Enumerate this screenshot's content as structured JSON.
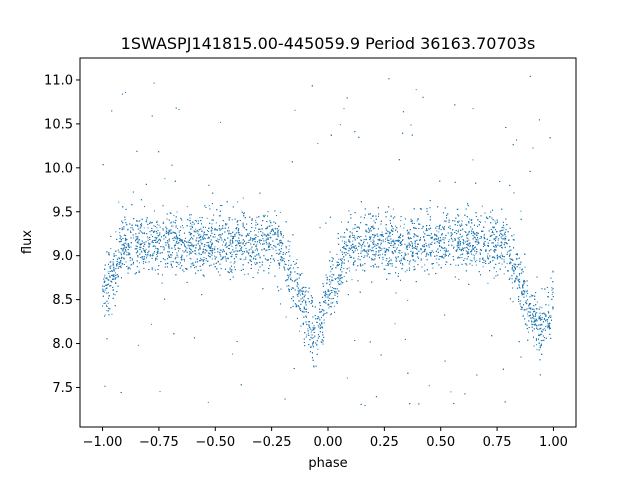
{
  "chart_data": {
    "type": "scatter",
    "title": "1SWASPJ141815.00-445059.9 Period 36163.70703s",
    "xlabel": "phase",
    "ylabel": "flux",
    "xlim": [
      -1.1,
      1.1
    ],
    "ylim": [
      7.05,
      11.25
    ],
    "x_ticks": [
      -1.0,
      -0.75,
      -0.5,
      -0.25,
      0.0,
      0.25,
      0.5,
      0.75,
      1.0
    ],
    "x_tick_labels": [
      "−1.00",
      "−0.75",
      "−0.50",
      "−0.25",
      "0.00",
      "0.25",
      "0.50",
      "0.75",
      "1.00"
    ],
    "y_ticks": [
      7.5,
      8.0,
      8.5,
      9.0,
      9.5,
      10.0,
      10.5,
      11.0
    ],
    "y_tick_labels": [
      "7.5",
      "8.0",
      "8.5",
      "9.0",
      "9.5",
      "10.0",
      "10.5",
      "11.0"
    ],
    "grid": false,
    "legend": "none",
    "marker_color": "#1f77b4",
    "series": [
      {
        "phase_range": [
          -1.0,
          1.0
        ],
        "baseline_flux": 9.15,
        "baseline_scatter": 0.17,
        "primary_eclipse": {
          "phase_center": -0.06,
          "min_flux": 8.1,
          "half_width": 0.16
        },
        "repeated_eclipse": {
          "phase_center": 0.94,
          "min_flux": 8.1,
          "half_width": 0.16
        },
        "wrapped_eclipse": {
          "phase_center": -1.06,
          "min_flux": 8.1,
          "half_width": 0.16
        },
        "outlier_flux_range": [
          7.25,
          11.05
        ]
      }
    ]
  }
}
